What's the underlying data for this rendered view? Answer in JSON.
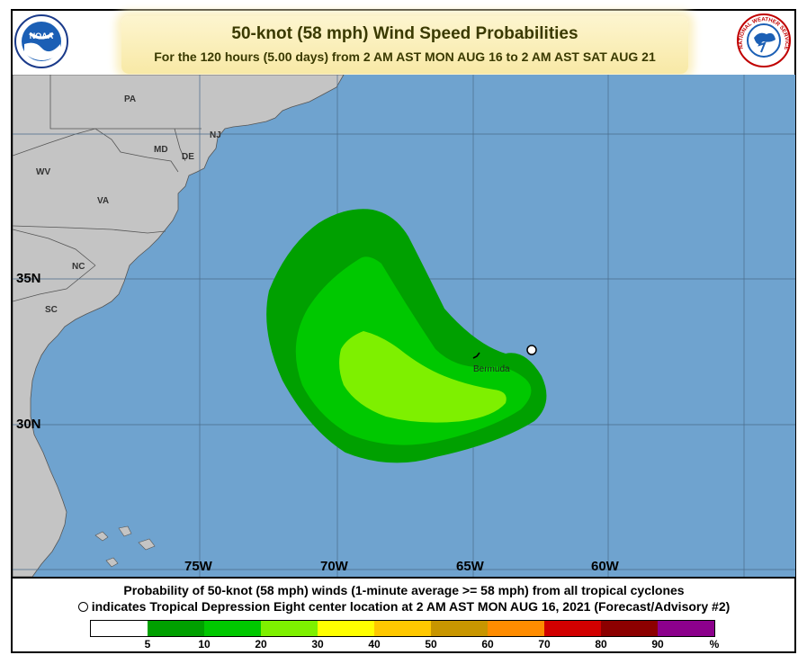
{
  "header": {
    "title": "50-knot (58 mph) Wind Speed Probabilities",
    "subtitle": "For the 120 hours (5.00 days) from 2 AM AST MON AUG 16 to 2 AM AST SAT AUG 21"
  },
  "logos": {
    "left": "NOAA",
    "right": "NATIONAL WEATHER SERVICE"
  },
  "map": {
    "latitudes": [
      "35N",
      "30N"
    ],
    "longitudes": [
      "75W",
      "70W",
      "65W",
      "60W"
    ],
    "states": [
      "PA",
      "NJ",
      "MD",
      "DE",
      "WV",
      "VA",
      "NC",
      "SC"
    ],
    "places": [
      "Bermuda"
    ],
    "colors": {
      "ocean": "#6fa3cf",
      "land": "#c4c4c4",
      "band_5_10": "#00a000",
      "band_10_20": "#00c800",
      "band_20_30": "#7ef000"
    }
  },
  "footer": {
    "line1": "Probability of 50-knot (58 mph) winds (1-minute average >= 58 mph) from all tropical cyclones",
    "line2": "indicates Tropical Depression Eight center location at 2 AM AST MON AUG 16, 2021 (Forecast/Advisory #2)"
  },
  "legend": {
    "labels": [
      "5",
      "10",
      "20",
      "30",
      "40",
      "50",
      "60",
      "70",
      "80",
      "90",
      "%"
    ],
    "colors": [
      "#ffffff",
      "#00a000",
      "#00c800",
      "#7ef000",
      "#ffff00",
      "#ffc800",
      "#c89600",
      "#ff8c00",
      "#d20000",
      "#8c0000",
      "#8c008c"
    ]
  }
}
